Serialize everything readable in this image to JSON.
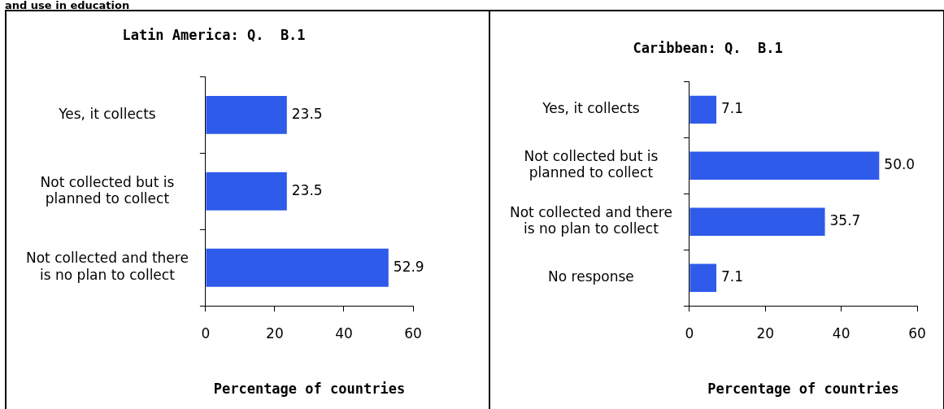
{
  "chart_data": [
    {
      "type": "bar",
      "orientation": "horizontal",
      "title": "Latin America: Q.  B.1",
      "xlabel": "Percentage of countries",
      "categories": [
        "Yes, it collects",
        "Not collected but is planned to collect",
        "Not collected and there is no plan to collect"
      ],
      "values": [
        23.5,
        23.5,
        52.9
      ],
      "color": "#2f5bea",
      "value_labels": [
        "23.5",
        "23.5",
        "52.9"
      ],
      "xlim": [
        0,
        60
      ],
      "xticks": [
        0,
        20,
        40,
        60
      ],
      "grid": false,
      "legend": false,
      "annotations": [
        "and use in education"
      ]
    },
    {
      "type": "bar",
      "orientation": "horizontal",
      "title": "Caribbean: Q.  B.1",
      "xlabel": "Percentage of countries",
      "categories": [
        "Yes, it collects",
        "Not collected but is planned to collect",
        "Not collected and there is no plan to collect",
        "No response"
      ],
      "values": [
        7.1,
        50.0,
        35.7,
        7.1
      ],
      "color": "#2f5bea",
      "value_labels": [
        "7.1",
        "50.0",
        "35.7",
        "7.1"
      ],
      "xlim": [
        0,
        60
      ],
      "xticks": [
        0,
        20,
        40,
        60
      ],
      "grid": false,
      "legend": false
    }
  ]
}
